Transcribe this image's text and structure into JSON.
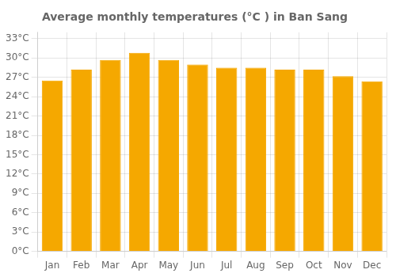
{
  "chart_data": {
    "type": "bar",
    "title": "Average monthly temperatures (°C ) in Ban Sang",
    "categories": [
      "Jan",
      "Feb",
      "Mar",
      "Apr",
      "May",
      "Jun",
      "Jul",
      "Aug",
      "Sep",
      "Oct",
      "Nov",
      "Dec"
    ],
    "values": [
      26.5,
      28.2,
      29.7,
      30.8,
      29.7,
      29.0,
      28.5,
      28.5,
      28.2,
      28.2,
      27.2,
      26.4
    ],
    "color": "#F5A800",
    "ylim": [
      0,
      34
    ],
    "yticks": [
      {
        "value": 0,
        "label": "0°C"
      },
      {
        "value": 3,
        "label": "3°C"
      },
      {
        "value": 6,
        "label": "6°C"
      },
      {
        "value": 9,
        "label": "9°C"
      },
      {
        "value": 12,
        "label": "12°C"
      },
      {
        "value": 15,
        "label": "15°C"
      },
      {
        "value": 18,
        "label": "18°C"
      },
      {
        "value": 21,
        "label": "21°C"
      },
      {
        "value": 24,
        "label": "24°C"
      },
      {
        "value": 27,
        "label": "27°C"
      },
      {
        "value": 30,
        "label": "30°C"
      },
      {
        "value": 33,
        "label": "33°C"
      }
    ],
    "grid": true
  }
}
